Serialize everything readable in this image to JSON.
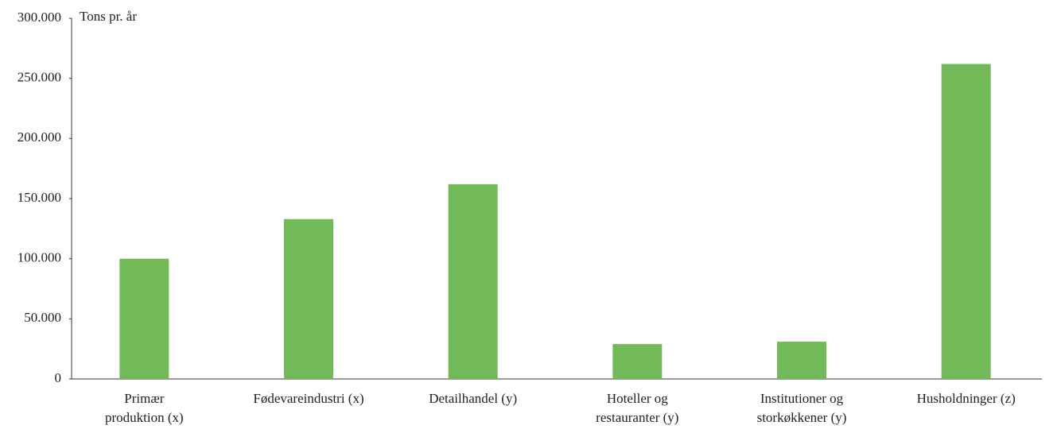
{
  "chart_data": {
    "type": "bar",
    "y_axis_label": "Tons pr. år",
    "categories": [
      [
        "Primær",
        "produktion (x)"
      ],
      [
        "Fødevareindustri (x)"
      ],
      [
        "Detailhandel (y)"
      ],
      [
        "Hoteller og",
        "restauranter (y)"
      ],
      [
        "Institutioner og",
        "storkøkkener (y)"
      ],
      [
        "Husholdninger (z)"
      ]
    ],
    "values": [
      100000,
      133000,
      162000,
      29000,
      31000,
      262000
    ],
    "color": "#72b957",
    "ylim": [
      0,
      300000
    ],
    "yticks": [
      0,
      {
        "value": 50000,
        "label": "50.000"
      },
      {
        "value": 100000,
        "label": "100.000"
      },
      {
        "value": 150000,
        "label": "150.000"
      },
      {
        "value": 200000,
        "label": "200.000"
      },
      {
        "value": 250000,
        "label": "250.000"
      },
      {
        "value": 300000,
        "label": "300.000"
      }
    ],
    "grid": false
  }
}
